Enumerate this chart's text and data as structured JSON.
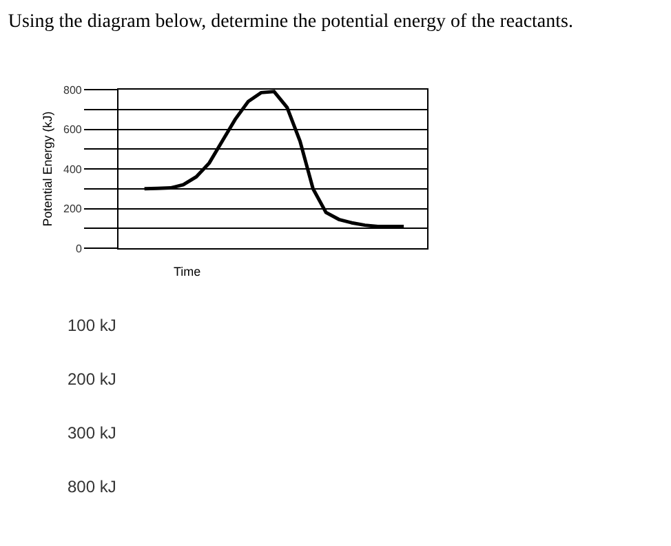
{
  "chart_data": {
    "type": "line",
    "title": "Using the diagram below, determine the potential energy of the reactants.",
    "xlabel": "Time",
    "ylabel": "Potential Energy (kJ)",
    "categories": [
      null,
      null,
      null,
      null,
      null,
      null,
      null,
      null,
      null,
      null,
      null,
      null,
      null,
      null,
      null,
      null,
      null,
      null,
      null,
      null,
      null
    ],
    "series": [
      {
        "color": "#000000",
        "values": [
          300,
          302,
          304,
          320,
          360,
          430,
          540,
          650,
          740,
          785,
          790,
          710,
          540,
          300,
          180,
          145,
          128,
          116,
          110,
          110,
          110
        ]
      }
    ],
    "ylim": [
      0,
      800
    ],
    "yticks": [
      0,
      {
        "value": 100,
        "label": null
      },
      200,
      {
        "value": 300,
        "label": null
      },
      400,
      {
        "value": 500,
        "label": null
      },
      600,
      {
        "value": 700,
        "label": null
      },
      800
    ],
    "tick_labels": "y",
    "grid": "y",
    "marker": "none",
    "line_style": "solid",
    "annotations": [
      "100 kJ",
      "200 kJ",
      "300 kJ",
      "800 kJ"
    ]
  }
}
